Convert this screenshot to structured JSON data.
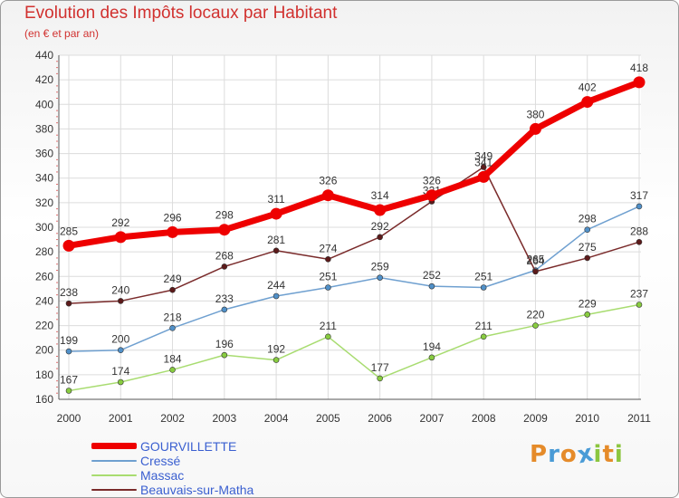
{
  "title": "Evolution des Impôts locaux par Habitant",
  "subtitle": "(en € et par an)",
  "logo": {
    "letters": [
      "P",
      "r",
      "o",
      "x",
      "i",
      "t",
      "i"
    ],
    "colors": [
      "#e58b2a",
      "#4a9bd6",
      "#e58b2a",
      "#4a9bd6",
      "#8cc63f",
      "#e58b2a",
      "#8cc63f"
    ]
  },
  "chart_data": {
    "type": "line",
    "title": "Evolution des Impôts locaux par Habitant",
    "subtitle": "(en € et par an)",
    "xlabel": "",
    "ylabel": "",
    "categories": [
      "2000",
      "2001",
      "2002",
      "2003",
      "2004",
      "2005",
      "2006",
      "2007",
      "2008",
      "2009",
      "2010",
      "2011"
    ],
    "ylim": [
      160,
      440
    ],
    "yticks": [
      160,
      180,
      200,
      220,
      240,
      260,
      280,
      300,
      320,
      340,
      360,
      380,
      400,
      420,
      440
    ],
    "grid": true,
    "legend_position": "bottom-left",
    "series": [
      {
        "name": "GOURVILLETTE",
        "color": "#ee0000",
        "marker": "#ee0000",
        "values": [
          285,
          292,
          296,
          298,
          311,
          326,
          314,
          326,
          341,
          380,
          402,
          418
        ]
      },
      {
        "name": "Cressé",
        "color": "#6fa0d0",
        "marker": "#5090c8",
        "values": [
          199,
          200,
          218,
          233,
          244,
          251,
          259,
          252,
          251,
          265,
          298,
          317
        ]
      },
      {
        "name": "Massac",
        "color": "#a8dc70",
        "marker": "#88cc40",
        "values": [
          167,
          174,
          184,
          196,
          192,
          211,
          177,
          194,
          211,
          220,
          229,
          237
        ]
      },
      {
        "name": "Beauvais-sur-Matha",
        "color": "#7a2b2b",
        "marker": "#5c1a1a",
        "values": [
          238,
          240,
          249,
          268,
          281,
          274,
          292,
          321,
          349,
          264,
          275,
          288
        ]
      }
    ]
  }
}
